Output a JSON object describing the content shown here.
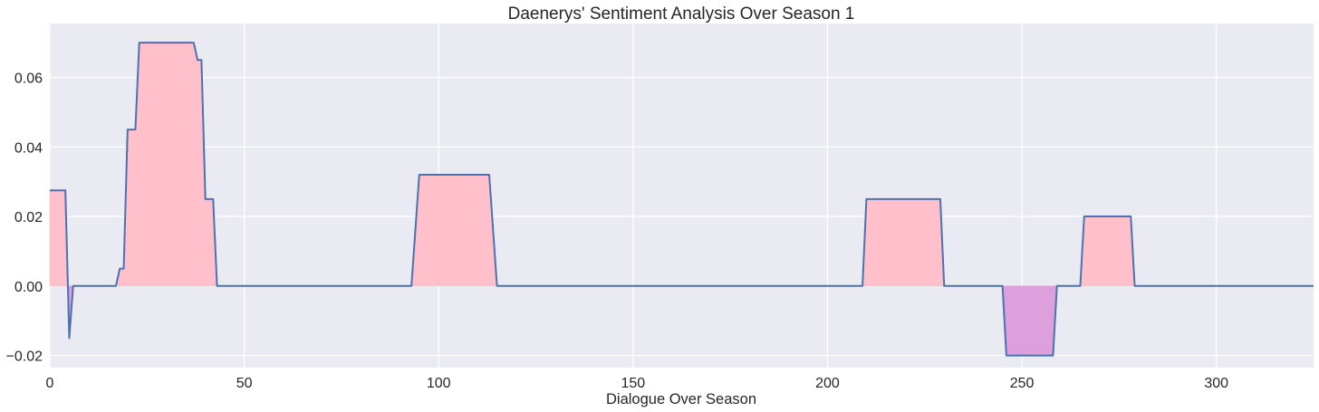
{
  "chart_data": {
    "type": "area",
    "title": "Daenerys' Sentiment Analysis Over Season 1",
    "xlabel": "Dialogue Over Season",
    "ylabel": "",
    "xlim": [
      0,
      325
    ],
    "ylim": [
      -0.0235,
      0.0755
    ],
    "x_ticks": [
      0,
      50,
      100,
      150,
      200,
      250,
      300
    ],
    "x_tick_labels": [
      "0",
      "50",
      "100",
      "150",
      "200",
      "250",
      "300"
    ],
    "y_ticks": [
      -0.02,
      0.0,
      0.02,
      0.04,
      0.06
    ],
    "y_tick_labels": [
      "−0.02",
      "0.00",
      "0.02",
      "0.04",
      "0.06"
    ],
    "grid": true,
    "colors": {
      "background": "#EAEAF2",
      "grid": "#FFFFFF",
      "line": "#4C72B0",
      "positive_fill": "#FFC0CB",
      "negative_fill": "#DDA0DD",
      "text": "#262626"
    },
    "series": [
      {
        "x": [
          0,
          4,
          5,
          6,
          17,
          18,
          19,
          20,
          22,
          23,
          37,
          38,
          39,
          40,
          42,
          43,
          93,
          95,
          113,
          115,
          209,
          210,
          229,
          230,
          245,
          246,
          258,
          259,
          265,
          266,
          278,
          279,
          325
        ],
        "y": [
          0.0275,
          0.0275,
          -0.015,
          0.0,
          0.0,
          0.005,
          0.005,
          0.045,
          0.045,
          0.07,
          0.07,
          0.065,
          0.065,
          0.025,
          0.025,
          0.0,
          0.0,
          0.032,
          0.032,
          0.0,
          0.0,
          0.025,
          0.025,
          0.0,
          0.0,
          -0.02,
          -0.02,
          0.0,
          0.0,
          0.02,
          0.02,
          0.0,
          0.0
        ]
      }
    ]
  }
}
